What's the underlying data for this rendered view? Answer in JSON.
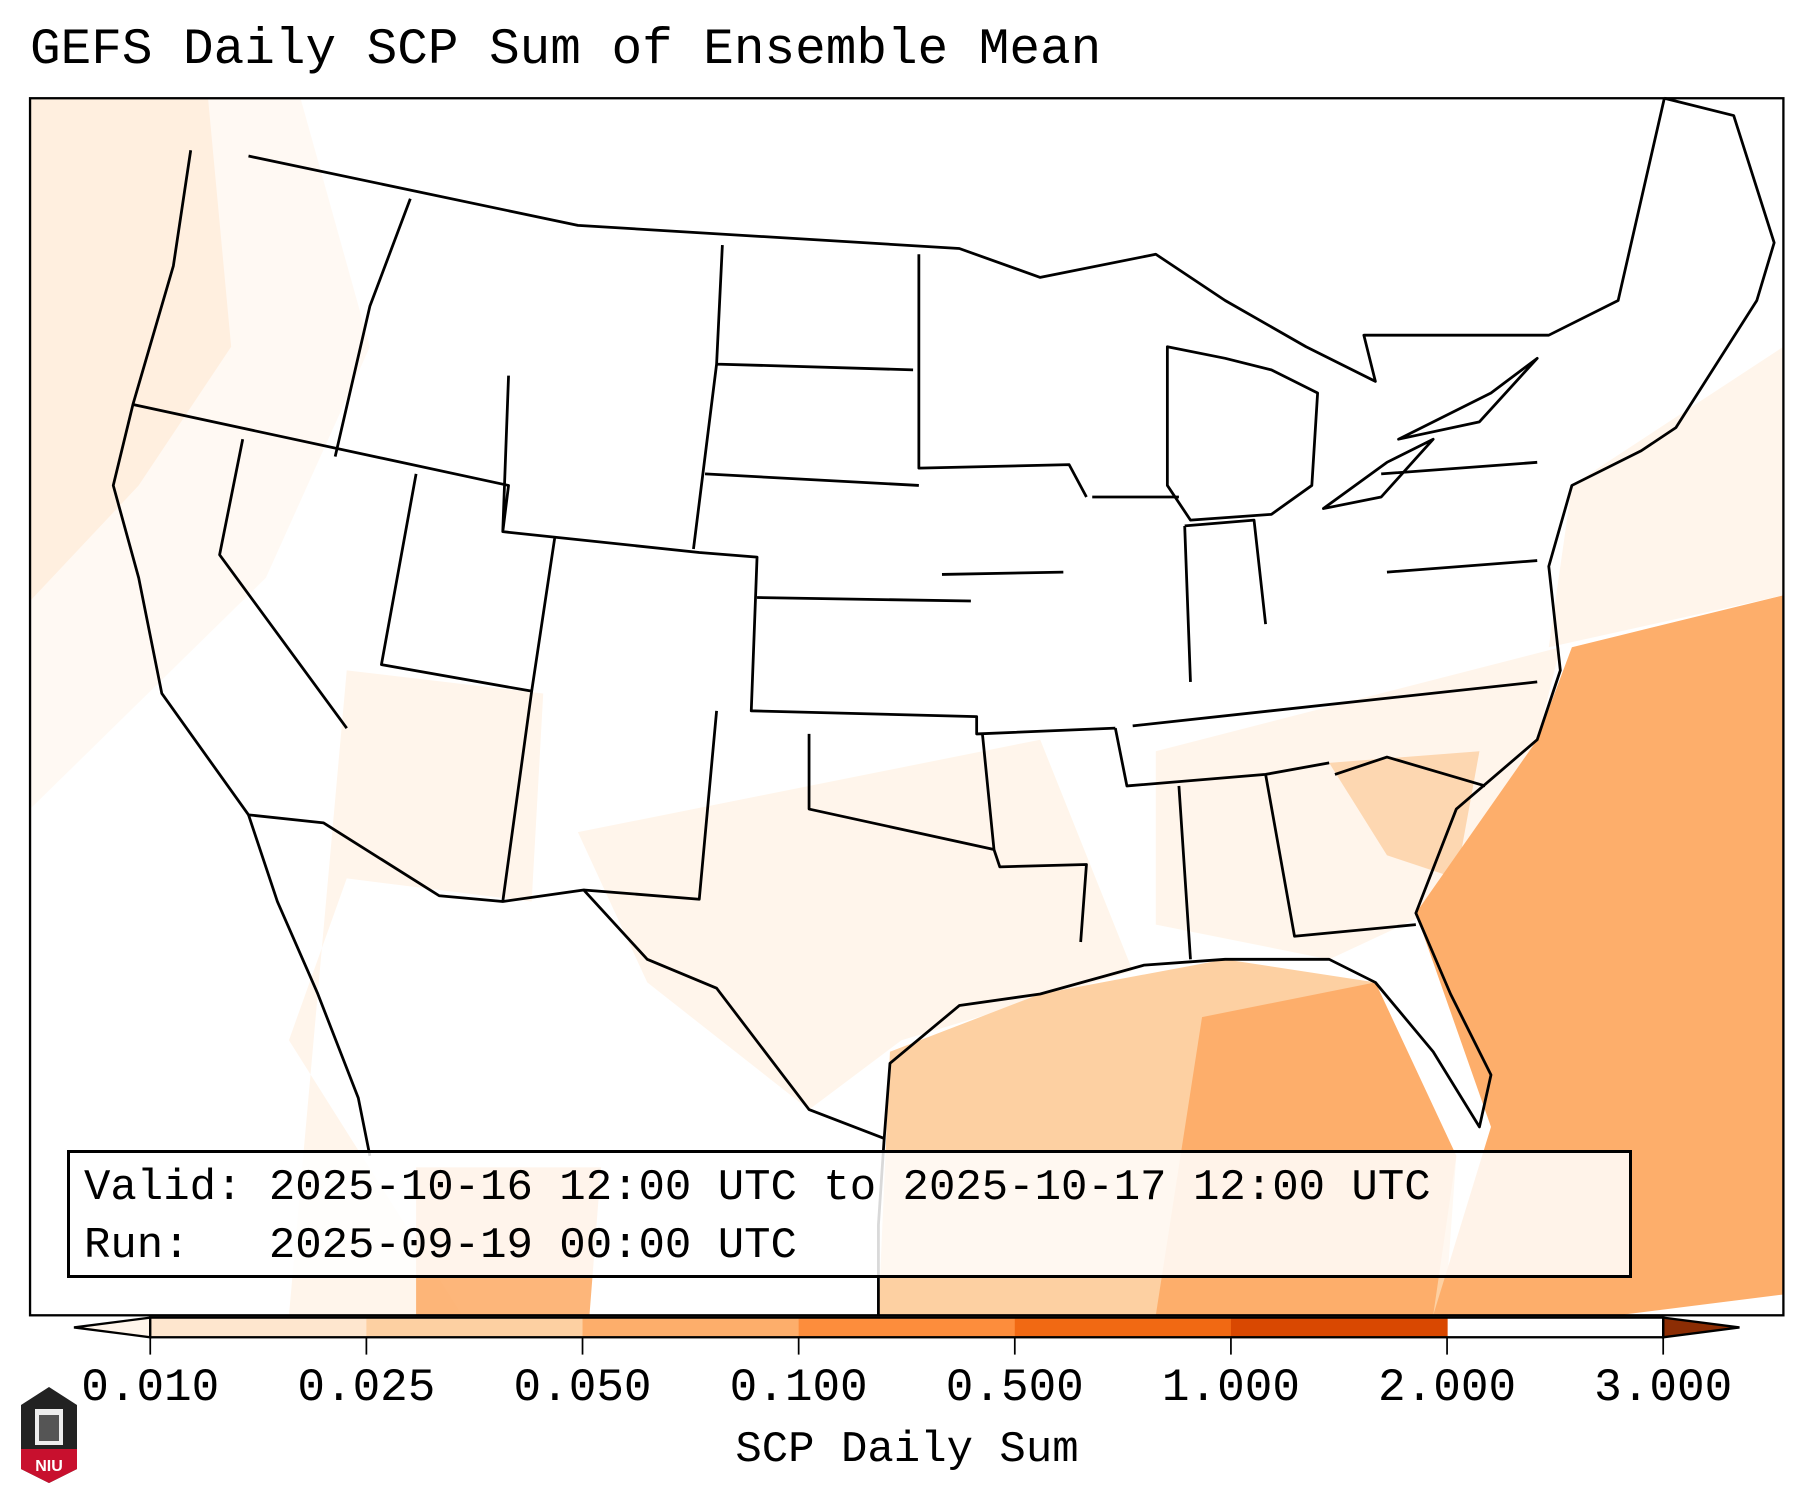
{
  "title": "GEFS Daily SCP Sum of Ensemble Mean",
  "info": {
    "valid_label": "Valid:",
    "valid_value": "2025-10-16 12:00 UTC to 2025-10-17 12:00 UTC",
    "run_label": "Run:",
    "run_value": "2025-09-19 00:00 UTC"
  },
  "colorbar": {
    "label": "SCP Daily Sum",
    "ticks": [
      "0.010",
      "0.025",
      "0.050",
      "0.100",
      "0.500",
      "1.000",
      "2.000",
      "3.000"
    ],
    "colors": [
      "#fff5eb",
      "#fee6ce",
      "#fdd0a2",
      "#fdae6b",
      "#fd8d3c",
      "#f16913",
      "#d94801",
      "#8c2d04"
    ]
  },
  "logo": {
    "text": "NIU"
  }
}
